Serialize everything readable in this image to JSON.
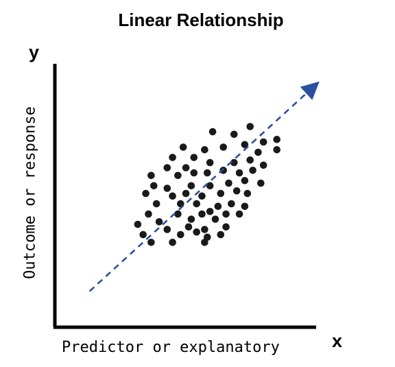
{
  "chart_data": {
    "type": "scatter",
    "title": "Linear Relationship",
    "xlabel": "Predictor or explanatory",
    "ylabel": "Outcome or response",
    "x_axis_letter": "x",
    "y_axis_letter": "y",
    "grid": false,
    "legend": "none",
    "xlim": [
      0,
      100
    ],
    "ylim": [
      0,
      100
    ],
    "colors": {
      "points": "#1a1a1a",
      "trend_arrow": "#2b4f9e",
      "axes": "#000000"
    },
    "trend": {
      "style": "dashed-arrow",
      "from": [
        13,
        14
      ],
      "to": [
        100,
        96
      ]
    },
    "points": [
      {
        "x": 59,
        "y": 76
      },
      {
        "x": 73,
        "y": 78
      },
      {
        "x": 67,
        "y": 75
      },
      {
        "x": 78,
        "y": 72
      },
      {
        "x": 83,
        "y": 73
      },
      {
        "x": 56,
        "y": 69
      },
      {
        "x": 63,
        "y": 70
      },
      {
        "x": 71,
        "y": 71
      },
      {
        "x": 48,
        "y": 70
      },
      {
        "x": 76,
        "y": 68
      },
      {
        "x": 83,
        "y": 69
      },
      {
        "x": 44,
        "y": 66
      },
      {
        "x": 52,
        "y": 66
      },
      {
        "x": 58,
        "y": 64
      },
      {
        "x": 67,
        "y": 64
      },
      {
        "x": 73,
        "y": 65
      },
      {
        "x": 42,
        "y": 62
      },
      {
        "x": 49,
        "y": 62
      },
      {
        "x": 63,
        "y": 61
      },
      {
        "x": 69,
        "y": 60
      },
      {
        "x": 74,
        "y": 61
      },
      {
        "x": 78,
        "y": 63
      },
      {
        "x": 36,
        "y": 59
      },
      {
        "x": 46,
        "y": 59
      },
      {
        "x": 52,
        "y": 60
      },
      {
        "x": 57,
        "y": 60
      },
      {
        "x": 71,
        "y": 57
      },
      {
        "x": 77,
        "y": 56
      },
      {
        "x": 37,
        "y": 55
      },
      {
        "x": 42,
        "y": 54
      },
      {
        "x": 51,
        "y": 55
      },
      {
        "x": 58,
        "y": 55
      },
      {
        "x": 65,
        "y": 56
      },
      {
        "x": 68,
        "y": 53
      },
      {
        "x": 72,
        "y": 52
      },
      {
        "x": 34,
        "y": 52
      },
      {
        "x": 44,
        "y": 51
      },
      {
        "x": 49,
        "y": 52
      },
      {
        "x": 55,
        "y": 51
      },
      {
        "x": 62,
        "y": 52
      },
      {
        "x": 38,
        "y": 48
      },
      {
        "x": 47,
        "y": 48
      },
      {
        "x": 53,
        "y": 48
      },
      {
        "x": 61,
        "y": 47
      },
      {
        "x": 66,
        "y": 48
      },
      {
        "x": 71,
        "y": 47
      },
      {
        "x": 35,
        "y": 44
      },
      {
        "x": 46,
        "y": 44
      },
      {
        "x": 55,
        "y": 44
      },
      {
        "x": 58,
        "y": 45
      },
      {
        "x": 64,
        "y": 44
      },
      {
        "x": 39,
        "y": 41
      },
      {
        "x": 51,
        "y": 42
      },
      {
        "x": 60,
        "y": 42
      },
      {
        "x": 69,
        "y": 44
      },
      {
        "x": 31,
        "y": 40
      },
      {
        "x": 42,
        "y": 38
      },
      {
        "x": 50,
        "y": 39
      },
      {
        "x": 56,
        "y": 38
      },
      {
        "x": 64,
        "y": 39
      },
      {
        "x": 33,
        "y": 36
      },
      {
        "x": 47,
        "y": 36
      },
      {
        "x": 53,
        "y": 37
      },
      {
        "x": 57,
        "y": 35
      },
      {
        "x": 62,
        "y": 36
      },
      {
        "x": 36,
        "y": 33
      },
      {
        "x": 44,
        "y": 33
      },
      {
        "x": 56,
        "y": 33
      }
    ]
  }
}
